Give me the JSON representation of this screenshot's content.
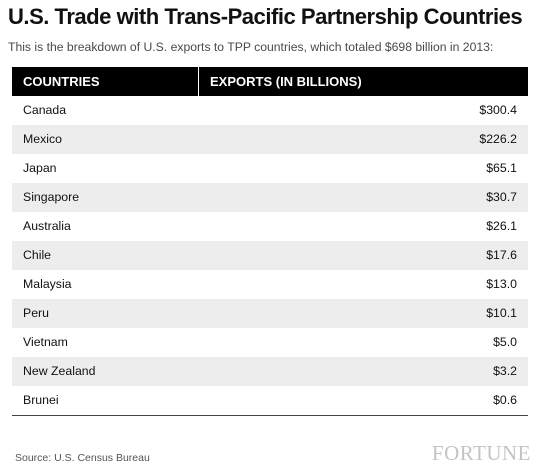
{
  "header": {
    "title": "U.S. Trade with Trans-Pacific Partnership Countries",
    "subtitle": "This is the breakdown of U.S. exports to TPP countries, which totaled $698 billion in 2013:"
  },
  "chart_data": {
    "type": "table",
    "title": "U.S. Trade with Trans-Pacific Partnership Countries",
    "subtitle": "This is the breakdown of U.S. exports to TPP countries, which totaled $698 billion in 2013:",
    "columns": [
      "COUNTRIES",
      "EXPORTS (IN BILLIONS)"
    ],
    "rows": [
      {
        "country": "Canada",
        "exports": "$300.4",
        "value": 300.4
      },
      {
        "country": "Mexico",
        "exports": "$226.2",
        "value": 226.2
      },
      {
        "country": "Japan",
        "exports": "$65.1",
        "value": 65.1
      },
      {
        "country": "Singapore",
        "exports": "$30.7",
        "value": 30.7
      },
      {
        "country": "Australia",
        "exports": "$26.1",
        "value": 26.1
      },
      {
        "country": "Chile",
        "exports": "$17.6",
        "value": 17.6
      },
      {
        "country": "Malaysia",
        "exports": "$13.0",
        "value": 13.0
      },
      {
        "country": "Peru",
        "exports": "$10.1",
        "value": 10.1
      },
      {
        "country": "Vietnam",
        "exports": "$5.0",
        "value": 5.0
      },
      {
        "country": "New Zealand",
        "exports": "$3.2",
        "value": 3.2
      },
      {
        "country": "Brunei",
        "exports": "$0.6",
        "value": 0.6
      }
    ]
  },
  "footer": {
    "source": "Source: U.S. Census Bureau",
    "logo": "FORTUNE"
  },
  "colors": {
    "header_background": "#000000",
    "header_text": "#ffffff",
    "row_stripe": "#ededed",
    "logo": "#c4c4c4"
  }
}
